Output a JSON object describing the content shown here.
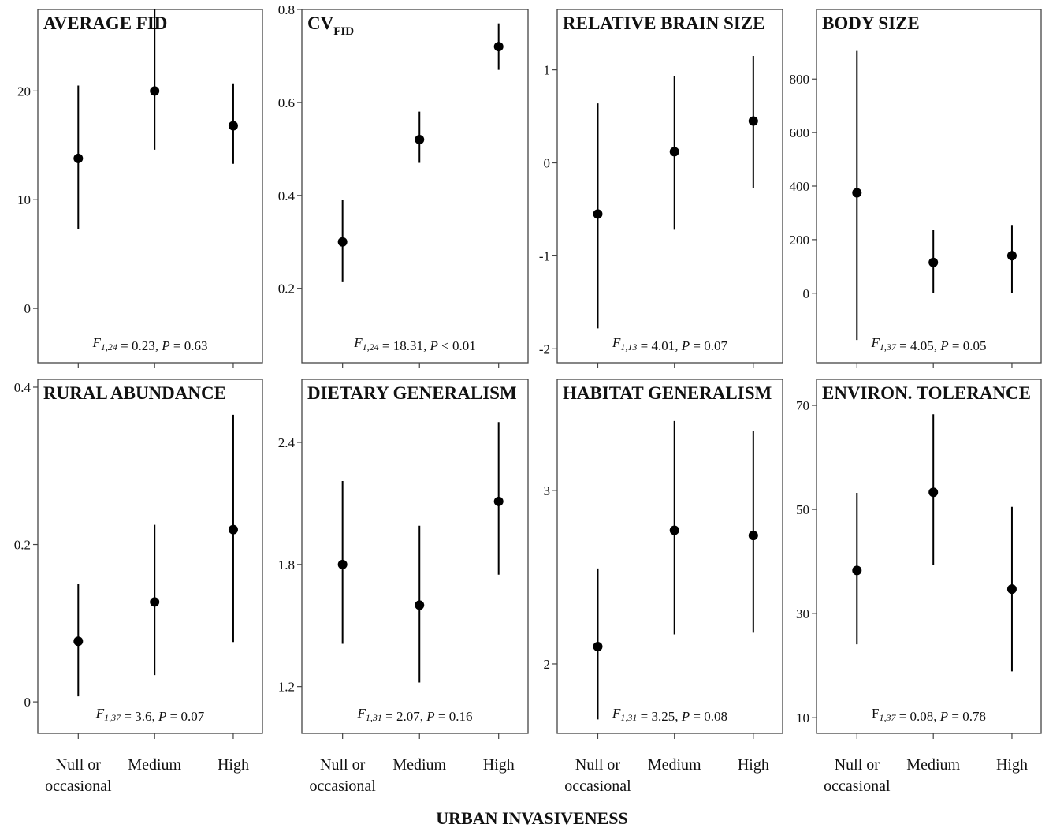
{
  "figure": {
    "x_axis_title": "URBAN INVASIVENESS",
    "categories": [
      [
        "Null or",
        "occasional"
      ],
      [
        "Medium"
      ],
      [
        "High"
      ]
    ]
  },
  "chart_data": [
    {
      "type": "scatter",
      "title": "AVERAGE FID",
      "title_sub": "",
      "stat_parts": [
        {
          "text": "F",
          "italic": true
        },
        {
          "text": "1,24",
          "italic": true,
          "sub": true
        },
        {
          "text": " = 0.23, ",
          "italic": false
        },
        {
          "text": "P",
          "italic": true
        },
        {
          "text": " = 0.63",
          "italic": false
        }
      ],
      "ylim": [
        -5,
        27.5
      ],
      "yticks": [
        "0",
        "10",
        "20"
      ],
      "ytick_values": [
        0,
        10,
        20
      ],
      "values": [
        13.8,
        20.0,
        16.8
      ],
      "lower": [
        7.3,
        14.6,
        13.3
      ],
      "upper": [
        20.5,
        27.5,
        20.7
      ]
    },
    {
      "type": "scatter",
      "title": "CV",
      "title_sub": "FID",
      "stat_parts": [
        {
          "text": "F",
          "italic": true
        },
        {
          "text": "1,24",
          "italic": true,
          "sub": true
        },
        {
          "text": " = 18.31, ",
          "italic": false
        },
        {
          "text": "P",
          "italic": true
        },
        {
          "text": " < 0.01",
          "italic": false
        }
      ],
      "ylim": [
        0.04,
        0.8
      ],
      "yticks": [
        "0.2",
        "0.4",
        "0.6",
        "0.8"
      ],
      "ytick_values": [
        0.2,
        0.4,
        0.6,
        0.8
      ],
      "values": [
        0.3,
        0.52,
        0.72
      ],
      "lower": [
        0.215,
        0.47,
        0.67
      ],
      "upper": [
        0.39,
        0.58,
        0.77
      ]
    },
    {
      "type": "scatter",
      "title": "RELATIVE BRAIN SIZE",
      "title_sub": "",
      "stat_parts": [
        {
          "text": "F",
          "italic": true
        },
        {
          "text": "1,13",
          "italic": true,
          "sub": true
        },
        {
          "text": " = 4.01, ",
          "italic": false
        },
        {
          "text": "P",
          "italic": true
        },
        {
          "text": " = 0.07",
          "italic": false
        }
      ],
      "ylim": [
        -2.15,
        1.65
      ],
      "yticks": [
        "-2",
        "-1",
        "0",
        "1"
      ],
      "ytick_values": [
        -2,
        -1,
        0,
        1
      ],
      "values": [
        -0.55,
        0.12,
        0.45
      ],
      "lower": [
        -1.78,
        -0.72,
        -0.27
      ],
      "upper": [
        0.64,
        0.93,
        1.15
      ]
    },
    {
      "type": "scatter",
      "title": "BODY SIZE",
      "title_sub": "",
      "stat_parts": [
        {
          "text": "F",
          "italic": true
        },
        {
          "text": "1,37",
          "italic": true,
          "sub": true
        },
        {
          "text": " = 4.05, ",
          "italic": false
        },
        {
          "text": "P",
          "italic": true
        },
        {
          "text": " = 0.05",
          "italic": false
        }
      ],
      "ylim": [
        -260,
        1060
      ],
      "yticks": [
        "0",
        "200",
        "400",
        "600",
        "800"
      ],
      "ytick_values": [
        0,
        200,
        400,
        600,
        800
      ],
      "values": [
        375,
        115,
        140
      ],
      "lower": [
        -175,
        0,
        0
      ],
      "upper": [
        905,
        235,
        255
      ]
    },
    {
      "type": "scatter",
      "title": "RURAL ABUNDANCE",
      "title_sub": "",
      "stat_parts": [
        {
          "text": "F",
          "italic": true
        },
        {
          "text": "1,37",
          "italic": true,
          "sub": true
        },
        {
          "text": " = 3.6, ",
          "italic": false
        },
        {
          "text": "P",
          "italic": true
        },
        {
          "text": " = 0.07",
          "italic": false
        }
      ],
      "ylim": [
        -0.04,
        0.41
      ],
      "yticks": [
        "0",
        "0.2",
        "0.4"
      ],
      "ytick_values": [
        0,
        0.2,
        0.4
      ],
      "values": [
        0.077,
        0.127,
        0.219
      ],
      "lower": [
        0.007,
        0.034,
        0.076
      ],
      "upper": [
        0.15,
        0.225,
        0.365
      ]
    },
    {
      "type": "scatter",
      "title": "DIETARY GENERALISM",
      "title_sub": "",
      "stat_parts": [
        {
          "text": "F",
          "italic": true
        },
        {
          "text": "1,31",
          "italic": true,
          "sub": true
        },
        {
          "text": " = 2.07, ",
          "italic": false
        },
        {
          "text": "P",
          "italic": true
        },
        {
          "text": " = 0.16",
          "italic": false
        }
      ],
      "ylim": [
        0.97,
        2.71
      ],
      "yticks": [
        "1.2",
        "1.8",
        "2.4"
      ],
      "ytick_values": [
        1.2,
        1.8,
        2.4
      ],
      "values": [
        1.8,
        1.6,
        2.11
      ],
      "lower": [
        1.41,
        1.22,
        1.75
      ],
      "upper": [
        2.21,
        1.99,
        2.5
      ]
    },
    {
      "type": "scatter",
      "title": "HABITAT GENERALISM",
      "title_sub": "",
      "stat_parts": [
        {
          "text": "F",
          "italic": true
        },
        {
          "text": "1,31",
          "italic": true,
          "sub": true
        },
        {
          "text": " = 3.25, ",
          "italic": false
        },
        {
          "text": "P",
          "italic": true
        },
        {
          "text": " = 0.08",
          "italic": false
        }
      ],
      "ylim": [
        1.6,
        3.64
      ],
      "yticks": [
        "2",
        "3"
      ],
      "ytick_values": [
        2,
        3
      ],
      "values": [
        2.1,
        2.77,
        2.74
      ],
      "lower": [
        1.68,
        2.17,
        2.18
      ],
      "upper": [
        2.55,
        3.4,
        3.34
      ]
    },
    {
      "type": "scatter",
      "title": "ENVIRON. TOLERANCE",
      "title_sub": "",
      "stat_parts": [
        {
          "text": "F",
          "italic": false
        },
        {
          "text": "1,37",
          "italic": true,
          "sub": true
        },
        {
          "text": " = 0.08, ",
          "italic": false
        },
        {
          "text": "P",
          "italic": true
        },
        {
          "text": " = 0.78",
          "italic": false
        }
      ],
      "ylim": [
        7,
        75
      ],
      "yticks": [
        "10",
        "30",
        "50",
        "70"
      ],
      "ytick_values": [
        10,
        30,
        50,
        70
      ],
      "values": [
        38.3,
        53.3,
        34.7
      ],
      "lower": [
        24.1,
        39.4,
        18.9
      ],
      "upper": [
        53.2,
        68.3,
        50.5
      ]
    }
  ]
}
